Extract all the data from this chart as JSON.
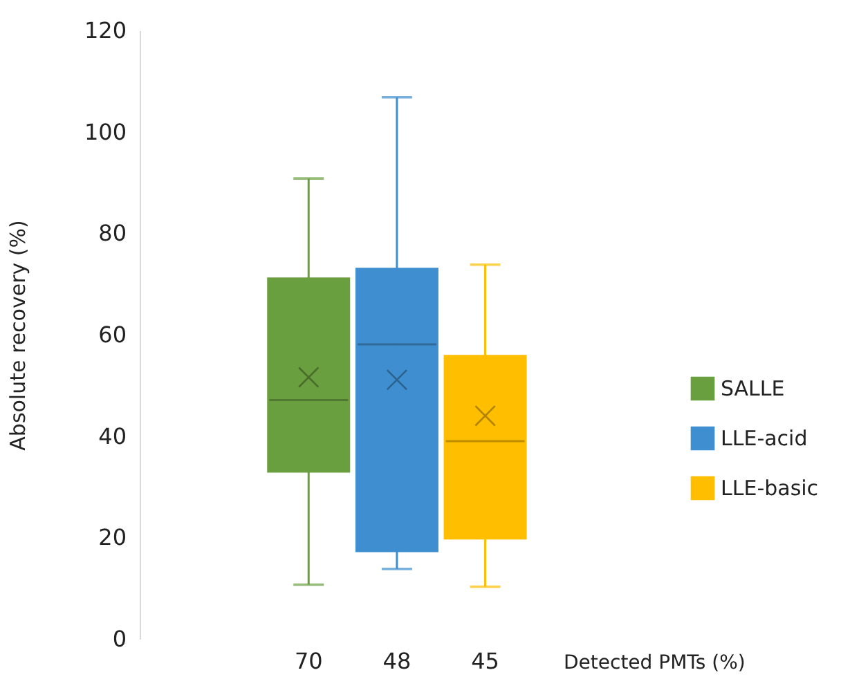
{
  "chart_data": {
    "type": "box",
    "xlabel": "Detected PMTs (%)",
    "ylabel": "Absolute recovery (%)",
    "categories": [
      "70",
      "48",
      "45"
    ],
    "series": [
      {
        "name": "SALLE",
        "color": "#6a9f40",
        "boxes": [
          {
            "low": 10.7,
            "q1": 32.8,
            "median": 47.1,
            "q3": 71.3,
            "high": 90.8,
            "mean": 51.6
          },
          null,
          null
        ]
      },
      {
        "name": "LLE-acid",
        "color": "#3f8ecf",
        "boxes": [
          null,
          {
            "low": 13.8,
            "q1": 17.1,
            "median": 58.1,
            "q3": 73.2,
            "high": 106.8,
            "mean": 51.1
          },
          null
        ]
      },
      {
        "name": "LLE-basic",
        "color": "#ffbe00",
        "boxes": [
          null,
          null,
          {
            "low": 10.3,
            "q1": 19.6,
            "median": 39,
            "q3": 56,
            "high": 73.8,
            "mean": 44
          }
        ]
      }
    ],
    "ylim": [
      0,
      120
    ],
    "yticks": [
      0,
      20,
      40,
      60,
      80,
      100,
      120
    ],
    "grid": false,
    "legend": "right"
  }
}
